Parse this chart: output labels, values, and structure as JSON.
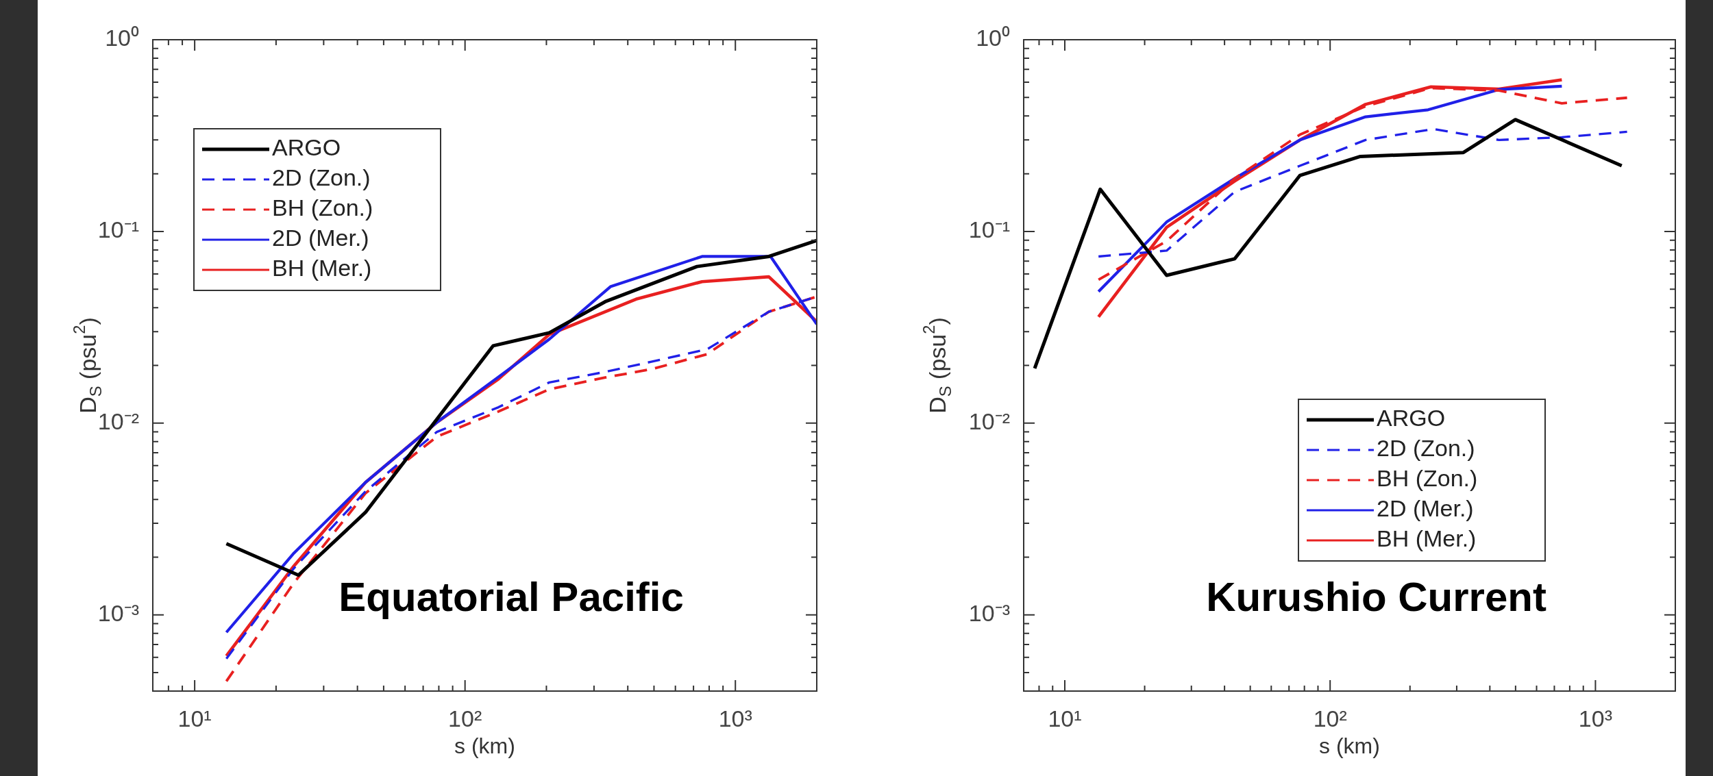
{
  "chart_data": [
    {
      "type": "line",
      "xlabel": "s (km)",
      "ylabel": "D$_{S}$ (psu$^{2}$)",
      "annotations": [
        "Equatorial Pacific"
      ],
      "log": "xy",
      "grid": false,
      "legend": "top left",
      "xlim": [
        7,
        2000
      ],
      "ylim": [
        0.0004,
        1
      ],
      "xticks": [
        {
          "value": 7,
          "label": null
        },
        {
          "value": 8,
          "label": null
        },
        {
          "value": 9,
          "label": null
        },
        {
          "value": 10,
          "label": "10¹"
        },
        {
          "value": 20,
          "label": null
        },
        {
          "value": 30,
          "label": null
        },
        {
          "value": 40,
          "label": null
        },
        {
          "value": 50,
          "label": null
        },
        {
          "value": 60,
          "label": null
        },
        {
          "value": 70,
          "label": null
        },
        {
          "value": 80,
          "label": null
        },
        {
          "value": 90,
          "label": null
        },
        {
          "value": 100,
          "label": "10²"
        },
        {
          "value": 200,
          "label": null
        },
        {
          "value": 300,
          "label": null
        },
        {
          "value": 400,
          "label": null
        },
        {
          "value": 500,
          "label": null
        },
        {
          "value": 600,
          "label": null
        },
        {
          "value": 700,
          "label": null
        },
        {
          "value": 800,
          "label": null
        },
        {
          "value": 900,
          "label": null
        },
        {
          "value": 1000,
          "label": "10³"
        },
        {
          "value": 2000,
          "label": null
        }
      ],
      "yticks": [
        {
          "value": 0.0004,
          "label": null
        },
        {
          "value": 0.0005,
          "label": null
        },
        {
          "value": 0.0006,
          "label": null
        },
        {
          "value": 0.0007,
          "label": null
        },
        {
          "value": 0.0008,
          "label": null
        },
        {
          "value": 0.0009,
          "label": null
        },
        {
          "value": 0.001,
          "label": "10⁻³"
        },
        {
          "value": 0.002,
          "label": null
        },
        {
          "value": 0.003,
          "label": null
        },
        {
          "value": 0.004,
          "label": null
        },
        {
          "value": 0.005,
          "label": null
        },
        {
          "value": 0.006,
          "label": null
        },
        {
          "value": 0.007,
          "label": null
        },
        {
          "value": 0.008,
          "label": null
        },
        {
          "value": 0.009,
          "label": null
        },
        {
          "value": 0.01,
          "label": "10⁻²"
        },
        {
          "value": 0.02,
          "label": null
        },
        {
          "value": 0.03,
          "label": null
        },
        {
          "value": 0.04,
          "label": null
        },
        {
          "value": 0.05,
          "label": null
        },
        {
          "value": 0.06,
          "label": null
        },
        {
          "value": 0.07,
          "label": null
        },
        {
          "value": 0.08,
          "label": null
        },
        {
          "value": 0.09,
          "label": null
        },
        {
          "value": 0.1,
          "label": "10⁻¹"
        },
        {
          "value": 0.2,
          "label": null
        },
        {
          "value": 0.3,
          "label": null
        },
        {
          "value": 0.4,
          "label": null
        },
        {
          "value": 0.5,
          "label": null
        },
        {
          "value": 0.6,
          "label": null
        },
        {
          "value": 0.7,
          "label": null
        },
        {
          "value": 0.8,
          "label": null
        },
        {
          "value": 0.9,
          "label": null
        },
        {
          "value": 1,
          "label": "10⁰"
        }
      ],
      "series": [
        {
          "name": "ARGO",
          "color": "#000000",
          "line_style": "solid",
          "x": [
            13.1,
            24.2,
            42.8,
            127,
            205,
            330,
            721,
            1330,
            2000
          ],
          "values": [
            0.00235,
            0.00161,
            0.00342,
            0.0253,
            0.0296,
            0.043,
            0.0656,
            0.074,
            0.0897
          ]
        },
        {
          "name": "2D (Zon.)",
          "color": "#2020e8",
          "line_style": "dashed",
          "x": [
            13.1,
            23.3,
            42.8,
            78.7,
            133,
            205,
            330,
            489,
            787,
            1330,
            2000
          ],
          "values": [
            0.00059,
            0.00175,
            0.0044,
            0.009,
            0.0121,
            0.0163,
            0.0185,
            0.0209,
            0.0243,
            0.0381,
            0.0457
          ]
        },
        {
          "name": "BH (Zon.)",
          "color": "#e82020",
          "line_style": "dashed",
          "x": [
            13.1,
            23.3,
            42.8,
            78.7,
            133,
            205,
            330,
            489,
            787,
            1330,
            2000
          ],
          "values": [
            0.00045,
            0.00147,
            0.0043,
            0.0085,
            0.0115,
            0.015,
            0.0173,
            0.0191,
            0.0229,
            0.0381,
            0.0457
          ]
        },
        {
          "name": "2D (Mer.)",
          "color": "#2020e8",
          "line_style": "solid",
          "x": [
            13.1,
            23.3,
            42.8,
            78.7,
            133,
            205,
            345,
            753,
            1350,
            2000
          ],
          "values": [
            0.00081,
            0.0021,
            0.0049,
            0.0101,
            0.0174,
            0.0274,
            0.0515,
            0.074,
            0.074,
            0.0328
          ]
        },
        {
          "name": "BH (Mer.)",
          "color": "#e82020",
          "line_style": "solid",
          "x": [
            13.1,
            23.3,
            42.8,
            78.7,
            133,
            205,
            429,
            753,
            1330,
            2000
          ],
          "values": [
            0.00061,
            0.0018,
            0.0049,
            0.0101,
            0.017,
            0.029,
            0.0443,
            0.0547,
            0.058,
            0.0338
          ]
        }
      ]
    },
    {
      "type": "line",
      "xlabel": "s (km)",
      "ylabel": "D$_{S}$ (psu$^{2}$)",
      "annotations": [
        "Kurushio Current"
      ],
      "log": "xy",
      "grid": false,
      "legend": "bottom right",
      "xlim": [
        7,
        2000
      ],
      "ylim": [
        0.0004,
        1
      ],
      "xticks": [
        {
          "value": 7,
          "label": null
        },
        {
          "value": 8,
          "label": null
        },
        {
          "value": 9,
          "label": null
        },
        {
          "value": 10,
          "label": "10¹"
        },
        {
          "value": 20,
          "label": null
        },
        {
          "value": 30,
          "label": null
        },
        {
          "value": 40,
          "label": null
        },
        {
          "value": 50,
          "label": null
        },
        {
          "value": 60,
          "label": null
        },
        {
          "value": 70,
          "label": null
        },
        {
          "value": 80,
          "label": null
        },
        {
          "value": 90,
          "label": null
        },
        {
          "value": 100,
          "label": "10²"
        },
        {
          "value": 200,
          "label": null
        },
        {
          "value": 300,
          "label": null
        },
        {
          "value": 400,
          "label": null
        },
        {
          "value": 500,
          "label": null
        },
        {
          "value": 600,
          "label": null
        },
        {
          "value": 700,
          "label": null
        },
        {
          "value": 800,
          "label": null
        },
        {
          "value": 900,
          "label": null
        },
        {
          "value": 1000,
          "label": "10³"
        },
        {
          "value": 2000,
          "label": null
        }
      ],
      "yticks": [
        {
          "value": 0.0004,
          "label": null
        },
        {
          "value": 0.0005,
          "label": null
        },
        {
          "value": 0.0006,
          "label": null
        },
        {
          "value": 0.0007,
          "label": null
        },
        {
          "value": 0.0008,
          "label": null
        },
        {
          "value": 0.0009,
          "label": null
        },
        {
          "value": 0.001,
          "label": "10⁻³"
        },
        {
          "value": 0.002,
          "label": null
        },
        {
          "value": 0.003,
          "label": null
        },
        {
          "value": 0.004,
          "label": null
        },
        {
          "value": 0.005,
          "label": null
        },
        {
          "value": 0.006,
          "label": null
        },
        {
          "value": 0.007,
          "label": null
        },
        {
          "value": 0.008,
          "label": null
        },
        {
          "value": 0.009,
          "label": null
        },
        {
          "value": 0.01,
          "label": "10⁻²"
        },
        {
          "value": 0.02,
          "label": null
        },
        {
          "value": 0.03,
          "label": null
        },
        {
          "value": 0.04,
          "label": null
        },
        {
          "value": 0.05,
          "label": null
        },
        {
          "value": 0.06,
          "label": null
        },
        {
          "value": 0.07,
          "label": null
        },
        {
          "value": 0.08,
          "label": null
        },
        {
          "value": 0.09,
          "label": null
        },
        {
          "value": 0.1,
          "label": "10⁻¹"
        },
        {
          "value": 0.2,
          "label": null
        },
        {
          "value": 0.3,
          "label": null
        },
        {
          "value": 0.4,
          "label": null
        },
        {
          "value": 0.5,
          "label": null
        },
        {
          "value": 0.6,
          "label": null
        },
        {
          "value": 0.7,
          "label": null
        },
        {
          "value": 0.8,
          "label": null
        },
        {
          "value": 0.9,
          "label": null
        },
        {
          "value": 1,
          "label": "10⁰"
        }
      ],
      "series": [
        {
          "name": "ARGO",
          "color": "#000000",
          "line_style": "solid",
          "x": [
            7.7,
            13.6,
            24.2,
            43.7,
            77,
            130,
            318,
            499,
            1256
          ],
          "values": [
            0.0193,
            0.166,
            0.059,
            0.072,
            0.196,
            0.246,
            0.258,
            0.383,
            0.22
          ]
        },
        {
          "name": "2D (Zon.)",
          "color": "#2020e8",
          "line_style": "dashed",
          "x": [
            13.4,
            24.2,
            43.7,
            77,
            136,
            245,
            433,
            747,
            1316
          ],
          "values": [
            0.074,
            0.0794,
            0.161,
            0.22,
            0.3,
            0.342,
            0.3,
            0.31,
            0.331
          ]
        },
        {
          "name": "BH (Zon.)",
          "color": "#e82020",
          "line_style": "dashed",
          "x": [
            13.4,
            24.2,
            43.7,
            77,
            136,
            240,
            433,
            747,
            1316
          ],
          "values": [
            0.056,
            0.089,
            0.189,
            0.32,
            0.45,
            0.56,
            0.543,
            0.466,
            0.498
          ]
        },
        {
          "name": "2D (Mer.)",
          "color": "#2020e8",
          "line_style": "solid",
          "x": [
            13.4,
            24.2,
            43.7,
            77,
            136,
            234,
            433,
            747
          ],
          "values": [
            0.0485,
            0.112,
            0.189,
            0.3,
            0.396,
            0.431,
            0.55,
            0.572
          ]
        },
        {
          "name": "BH (Mer.)",
          "color": "#e82020",
          "line_style": "solid",
          "x": [
            13.4,
            24.2,
            43.7,
            77,
            136,
            240,
            433,
            747
          ],
          "values": [
            0.0358,
            0.105,
            0.183,
            0.3,
            0.46,
            0.568,
            0.553,
            0.618
          ]
        }
      ]
    }
  ]
}
